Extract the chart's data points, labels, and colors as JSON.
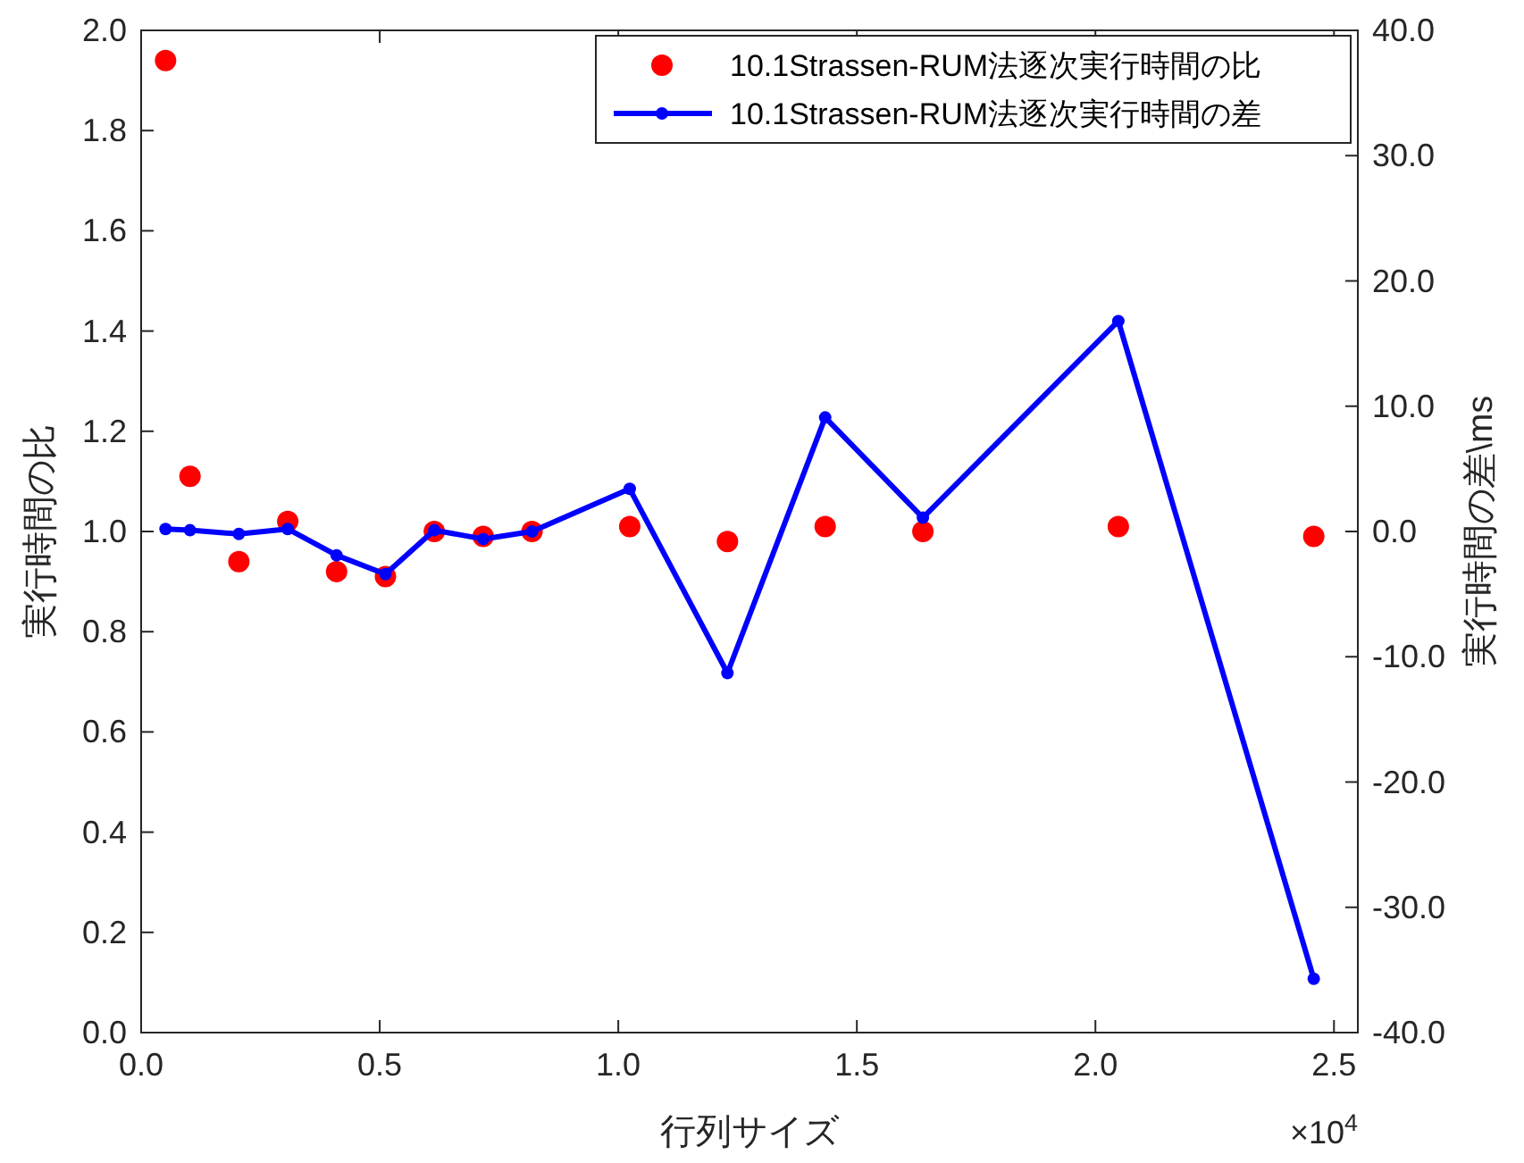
{
  "chart_data": {
    "type": "scatter",
    "xlabel": "行列サイズ",
    "ylabel": "実行時間の比",
    "y2label": "実行時間の差\\ms",
    "x": [
      0.0512,
      0.1024,
      0.2048,
      0.3072,
      0.4096,
      0.512,
      0.6144,
      0.7168,
      0.8192,
      1.024,
      1.2288,
      1.4336,
      1.6384,
      2.048,
      2.4576
    ],
    "series": [
      {
        "name": "10.1Strassen-RUM法逐次実行時間の比",
        "color": "#ff0000",
        "marker": "circle",
        "values": [
          1.94,
          1.11,
          0.94,
          1.02,
          0.92,
          0.91,
          1.0,
          0.99,
          1.0,
          1.01,
          0.98,
          1.01,
          1.0,
          1.01,
          0.99
        ]
      },
      {
        "name": "10.1Strassen-RUM法逐次実行時間の差",
        "type": "line",
        "axis": "y2",
        "color": "#0000ff",
        "marker": "circle",
        "line_style": "solid",
        "values": [
          0.2,
          0.1,
          -0.2,
          0.2,
          -1.9,
          -3.4,
          0.1,
          -0.6,
          0.0,
          3.4,
          -11.3,
          9.1,
          1.1,
          16.8,
          -35.7
        ]
      }
    ],
    "xlim": [
      0,
      2.55
    ],
    "xticks": [
      {
        "value": 0,
        "label": "0.0"
      },
      {
        "value": 0.5,
        "label": "0.5"
      },
      {
        "value": 1,
        "label": "1.0"
      },
      {
        "value": 1.5,
        "label": "1.5"
      },
      {
        "value": 2,
        "label": "2.0"
      },
      {
        "value": 2.5,
        "label": "2.5"
      }
    ],
    "ylim": [
      0,
      2
    ],
    "yticks": [
      {
        "value": 0,
        "label": "0.0"
      },
      {
        "value": 0.2,
        "label": "0.2"
      },
      {
        "value": 0.4,
        "label": "0.4"
      },
      {
        "value": 0.6,
        "label": "0.6"
      },
      {
        "value": 0.8,
        "label": "0.8"
      },
      {
        "value": 1,
        "label": "1.0"
      },
      {
        "value": 1.2,
        "label": "1.2"
      },
      {
        "value": 1.4,
        "label": "1.4"
      },
      {
        "value": 1.6,
        "label": "1.6"
      },
      {
        "value": 1.8,
        "label": "1.8"
      },
      {
        "value": 2,
        "label": "2.0"
      }
    ],
    "y2lim": [
      -40,
      40
    ],
    "y2ticks": [
      {
        "value": -40,
        "label": "-40.0"
      },
      {
        "value": -30,
        "label": "-30.0"
      },
      {
        "value": -20,
        "label": "-20.0"
      },
      {
        "value": -10,
        "label": "-10.0"
      },
      {
        "value": 0,
        "label": "0.0"
      },
      {
        "value": 10,
        "label": "10.0"
      },
      {
        "value": 20,
        "label": "20.0"
      },
      {
        "value": 30,
        "label": "30.0"
      },
      {
        "value": 40,
        "label": "40.0"
      }
    ],
    "annotations": [
      "×10$^{4}$"
    ],
    "legend": "top right",
    "grid": false
  }
}
